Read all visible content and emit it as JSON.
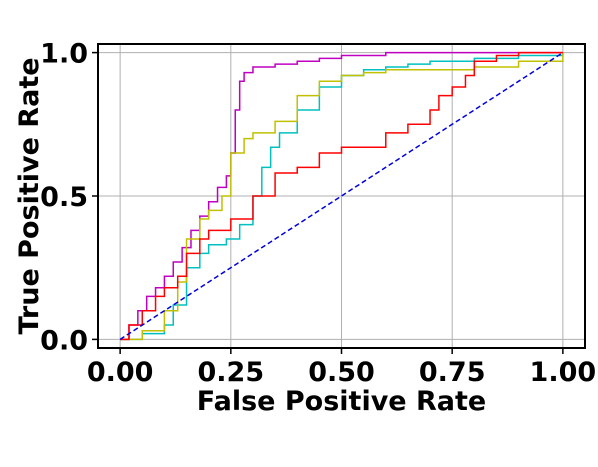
{
  "chart_data": {
    "type": "line",
    "title": "",
    "xlabel": "False Positive Rate",
    "ylabel": "True Positive Rate",
    "xlim": [
      -0.05,
      1.05
    ],
    "ylim": [
      -0.03,
      1.03
    ],
    "xticks": [
      0.0,
      0.25,
      0.5,
      0.75,
      1.0
    ],
    "xtick_labels": [
      "0.00",
      "0.25",
      "0.50",
      "0.75",
      "1.00"
    ],
    "yticks": [
      0.0,
      0.5,
      1.0
    ],
    "ytick_labels": [
      "0.0",
      "0.5",
      "1.0"
    ],
    "grid": true,
    "legend": "none",
    "series": [
      {
        "color": "#c000c0",
        "style": "solid",
        "x": [
          0.0,
          0.02,
          0.04,
          0.06,
          0.08,
          0.1,
          0.12,
          0.14,
          0.16,
          0.18,
          0.2,
          0.22,
          0.24,
          0.25,
          0.26,
          0.27,
          0.28,
          0.3,
          0.35,
          0.4,
          0.45,
          0.5,
          0.6,
          0.7,
          0.8,
          0.9,
          1.0
        ],
        "y": [
          0.0,
          0.05,
          0.1,
          0.15,
          0.18,
          0.22,
          0.27,
          0.32,
          0.38,
          0.43,
          0.48,
          0.53,
          0.57,
          0.65,
          0.8,
          0.9,
          0.93,
          0.95,
          0.96,
          0.97,
          0.98,
          0.99,
          1.0,
          1.0,
          1.0,
          1.0,
          1.0
        ]
      },
      {
        "color": "#00c0c0",
        "style": "solid",
        "x": [
          0.0,
          0.05,
          0.1,
          0.12,
          0.15,
          0.18,
          0.2,
          0.24,
          0.27,
          0.3,
          0.32,
          0.34,
          0.36,
          0.4,
          0.45,
          0.5,
          0.55,
          0.6,
          0.65,
          0.7,
          0.8,
          0.9,
          1.0
        ],
        "y": [
          0.0,
          0.02,
          0.05,
          0.12,
          0.25,
          0.3,
          0.33,
          0.35,
          0.4,
          0.5,
          0.6,
          0.67,
          0.72,
          0.8,
          0.88,
          0.92,
          0.94,
          0.95,
          0.96,
          0.97,
          0.98,
          0.99,
          1.0
        ]
      },
      {
        "color": "#c0c000",
        "style": "solid",
        "x": [
          0.0,
          0.05,
          0.1,
          0.13,
          0.15,
          0.18,
          0.2,
          0.23,
          0.25,
          0.28,
          0.3,
          0.35,
          0.4,
          0.45,
          0.5,
          0.55,
          0.6,
          0.7,
          0.8,
          0.9,
          1.0
        ],
        "y": [
          0.0,
          0.03,
          0.1,
          0.2,
          0.35,
          0.42,
          0.45,
          0.5,
          0.65,
          0.7,
          0.72,
          0.76,
          0.85,
          0.9,
          0.92,
          0.93,
          0.94,
          0.94,
          0.95,
          0.97,
          1.0
        ]
      },
      {
        "color": "#ff0000",
        "style": "solid",
        "x": [
          0.0,
          0.02,
          0.05,
          0.08,
          0.1,
          0.13,
          0.15,
          0.18,
          0.2,
          0.25,
          0.3,
          0.35,
          0.4,
          0.45,
          0.5,
          0.55,
          0.6,
          0.65,
          0.7,
          0.72,
          0.75,
          0.78,
          0.8,
          0.85,
          0.9,
          0.95,
          1.0
        ],
        "y": [
          0.0,
          0.05,
          0.1,
          0.15,
          0.18,
          0.22,
          0.3,
          0.35,
          0.38,
          0.42,
          0.5,
          0.58,
          0.6,
          0.65,
          0.67,
          0.67,
          0.72,
          0.75,
          0.8,
          0.85,
          0.88,
          0.92,
          0.97,
          0.99,
          1.0,
          1.0,
          1.0
        ]
      },
      {
        "color": "#0000e0",
        "style": "dashed",
        "x": [
          0.0,
          1.0
        ],
        "y": [
          0.0,
          1.0
        ]
      }
    ]
  }
}
